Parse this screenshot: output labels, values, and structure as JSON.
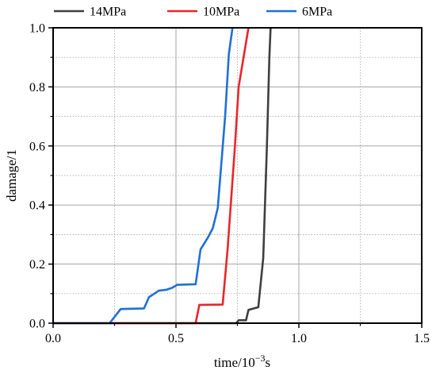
{
  "chart_data": {
    "type": "line",
    "title": "",
    "xlabel": "time/10",
    "xlabel_exp": "−3",
    "xlabel_unit": "s",
    "ylabel": "damage/1",
    "xlim": [
      0.0,
      1.5
    ],
    "ylim": [
      0.0,
      1.0
    ],
    "x_ticks": [
      0.0,
      0.5,
      1.0,
      1.5
    ],
    "x_tick_labels": [
      "0.0",
      "0.5",
      "1.0",
      "1.5"
    ],
    "y_ticks": [
      0.0,
      0.2,
      0.4,
      0.6,
      0.8,
      1.0
    ],
    "y_tick_labels": [
      "0.0",
      "0.2",
      "0.4",
      "0.6",
      "0.8",
      "1.0"
    ],
    "grid": true,
    "legend_position": "top",
    "series": [
      {
        "name": "14MPa",
        "color": "#3f3f3f",
        "points": [
          [
            0.0,
            0.0
          ],
          [
            0.745,
            0.0
          ],
          [
            0.755,
            0.01
          ],
          [
            0.785,
            0.01
          ],
          [
            0.795,
            0.045
          ],
          [
            0.835,
            0.054
          ],
          [
            0.855,
            0.22
          ],
          [
            0.87,
            0.6
          ],
          [
            0.88,
            0.9
          ],
          [
            0.885,
            1.0
          ]
        ]
      },
      {
        "name": "10MPa",
        "color": "#e8262b",
        "points": [
          [
            0.0,
            0.0
          ],
          [
            0.58,
            0.0
          ],
          [
            0.595,
            0.062
          ],
          [
            0.69,
            0.063
          ],
          [
            0.71,
            0.25
          ],
          [
            0.74,
            0.6
          ],
          [
            0.755,
            0.8
          ],
          [
            0.795,
            1.0
          ]
        ]
      },
      {
        "name": "6MPa",
        "color": "#1f6fd6",
        "points": [
          [
            0.0,
            0.0
          ],
          [
            0.23,
            0.0
          ],
          [
            0.275,
            0.048
          ],
          [
            0.37,
            0.05
          ],
          [
            0.39,
            0.088
          ],
          [
            0.43,
            0.11
          ],
          [
            0.46,
            0.113
          ],
          [
            0.485,
            0.12
          ],
          [
            0.505,
            0.13
          ],
          [
            0.58,
            0.132
          ],
          [
            0.6,
            0.25
          ],
          [
            0.63,
            0.29
          ],
          [
            0.65,
            0.322
          ],
          [
            0.67,
            0.39
          ],
          [
            0.7,
            0.7
          ],
          [
            0.715,
            0.91
          ],
          [
            0.73,
            1.0
          ]
        ]
      }
    ]
  }
}
